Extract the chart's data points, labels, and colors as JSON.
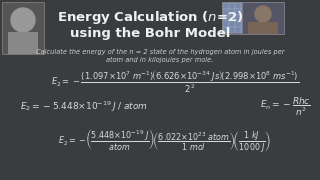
{
  "background_color": "#3a3d40",
  "title_line1": "Energy Calculation ($n$=2)",
  "title_line2": "using the Bohr Model",
  "title_color": "#f0f0f0",
  "title_fontsize": 9.5,
  "subtitle": "Calculate the energy of the n = 2 state of the hydrogen atom in joules per\natom and in kilojoules per mole.",
  "subtitle_color": "#cccccc",
  "subtitle_fontsize": 4.8,
  "math_color": "#d8d8d8",
  "eq1_fontsize": 6.0,
  "eq2_fontsize": 6.5,
  "eq3_fontsize": 5.8
}
